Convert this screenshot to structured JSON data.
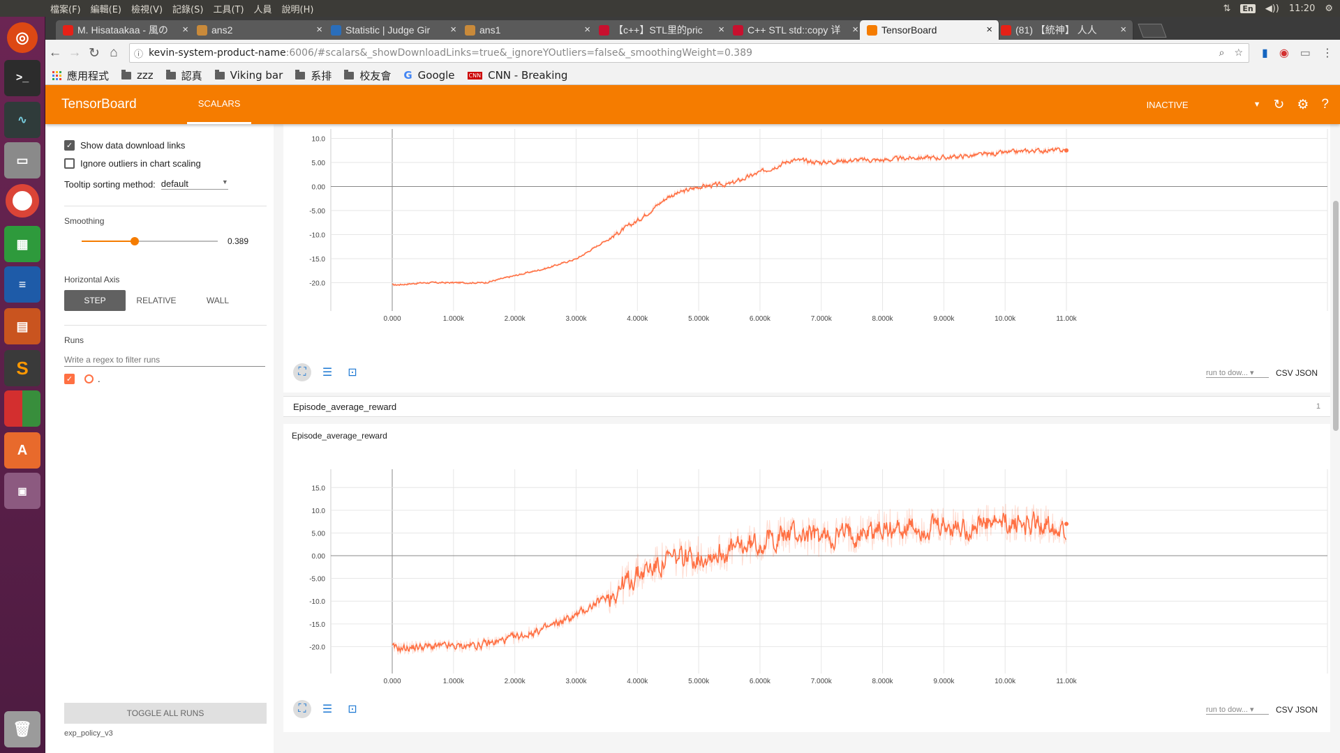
{
  "os": {
    "menu": [
      "檔案(F)",
      "編輯(E)",
      "檢視(V)",
      "記錄(S)",
      "工具(T)",
      "人員",
      "說明(H)"
    ],
    "tray": {
      "lang": "En",
      "volume": "◀))",
      "time": "11:20"
    }
  },
  "browser": {
    "tabs": [
      {
        "title": "M. Hisataakaa - 風の",
        "favicon_color": "#e62117"
      },
      {
        "title": "ans2",
        "favicon_color": "#c98a3a"
      },
      {
        "title": "Statistic | Judge Gir",
        "favicon_color": "#2a6ebb"
      },
      {
        "title": "ans1",
        "favicon_color": "#c98a3a"
      },
      {
        "title": "【c++】STL里的pric",
        "favicon_color": "#c8102e"
      },
      {
        "title": "C++ STL std::copy 详",
        "favicon_color": "#c8102e"
      },
      {
        "title": "TensorBoard",
        "favicon_color": "#f57c00",
        "active": true
      },
      {
        "title": "(81) 【統神】 人人",
        "favicon_color": "#e62117"
      }
    ],
    "url_host": "kevin-system-product-name",
    "url_path": ":6006/#scalars&_showDownloadLinks=true&_ignoreYOutliers=false&_smoothingWeight=0.389",
    "bookmarks": [
      "應用程式",
      "zzz",
      "認真",
      "Viking bar",
      "系排",
      "校友會",
      "Google",
      "CNN - Breaking"
    ]
  },
  "tensorboard": {
    "brand": "TensorBoard",
    "tab": "SCALARS",
    "status": "INACTIVE",
    "sidebar": {
      "show_download": "Show data download links",
      "ignore_outliers": "Ignore outliers in chart scaling",
      "tooltip_label": "Tooltip sorting method:",
      "tooltip_value": "default",
      "smoothing_label": "Smoothing",
      "smoothing_value": "0.389",
      "smoothing_fraction": 0.389,
      "axis_label": "Horizontal Axis",
      "axis_options": [
        "STEP",
        "RELATIVE",
        "WALL"
      ],
      "runs_label": "Runs",
      "runs_placeholder": "Write a regex to filter runs",
      "run_name": ".",
      "toggle_all": "TOGGLE ALL RUNS",
      "log_dir": "exp_policy_v3"
    },
    "group": {
      "name": "Episode_average_reward",
      "count": "1"
    },
    "download": {
      "select": "run to dow...",
      "csv": "CSV",
      "json": "JSON"
    },
    "colors": {
      "accent": "#f57c00",
      "series": "#ff7043"
    }
  },
  "chart_data": [
    {
      "type": "line",
      "title": "",
      "ylim": [
        -25,
        10.5
      ],
      "yticks": [
        "10.0",
        "5.00",
        "0.00",
        "-5.00",
        "-10.0",
        "-15.0",
        "-20.0"
      ],
      "xticks": [
        "0.000",
        "1.000k",
        "2.000k",
        "3.000k",
        "4.000k",
        "5.000k",
        "6.000k",
        "7.000k",
        "8.000k",
        "9.000k",
        "10.00k",
        "11.00k"
      ],
      "grid": true,
      "x": [
        0,
        500,
        1000,
        1500,
        2000,
        2500,
        3000,
        3500,
        4000,
        4500,
        5000,
        5500,
        6000,
        6500,
        7000,
        7500,
        8000,
        8500,
        9000,
        9500,
        10000,
        10500,
        11000
      ],
      "y": [
        -20.5,
        -20,
        -20,
        -20,
        -18.5,
        -17,
        -15,
        -11,
        -7,
        -2,
        0,
        0.5,
        3,
        5.5,
        5,
        5.5,
        5.5,
        6,
        6,
        6.5,
        7,
        7.5,
        7.5
      ],
      "noise": 0.8
    },
    {
      "type": "line",
      "title": "Episode_average_reward",
      "ylim": [
        -25,
        17.5
      ],
      "yticks": [
        "15.0",
        "10.0",
        "5.00",
        "0.00",
        "-5.00",
        "-10.0",
        "-15.0",
        "-20.0"
      ],
      "xticks": [
        "0.000",
        "1.000k",
        "2.000k",
        "3.000k",
        "4.000k",
        "5.000k",
        "6.000k",
        "7.000k",
        "8.000k",
        "9.000k",
        "10.00k",
        "11.00k"
      ],
      "grid": true,
      "x": [
        0,
        500,
        1000,
        1500,
        2000,
        2500,
        3000,
        3500,
        4000,
        4500,
        5000,
        5500,
        6000,
        6500,
        7000,
        7500,
        8000,
        8500,
        9000,
        9500,
        10000,
        10500,
        11000
      ],
      "y": [
        -20.5,
        -20,
        -20,
        -19.5,
        -18,
        -16,
        -13,
        -9,
        -4,
        -1,
        0,
        1,
        3,
        5,
        4,
        5,
        6,
        6,
        6,
        6.5,
        7,
        7,
        7
      ],
      "noise": 4.5
    }
  ]
}
